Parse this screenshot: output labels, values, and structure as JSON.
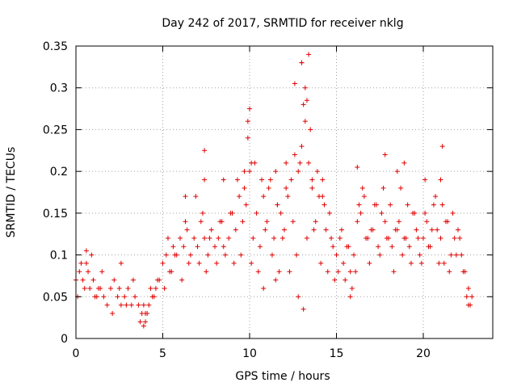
{
  "chart_data": {
    "type": "scatter",
    "title": "Day 242 of 2017, SRMTID for receiver nklg",
    "xlabel": "GPS time / hours",
    "ylabel": "SRMTID / TECUs",
    "xlim": [
      0,
      24
    ],
    "ylim": [
      0,
      0.35
    ],
    "x_ticks": [
      0,
      5,
      10,
      15,
      20
    ],
    "x_tick_labels": [
      "0",
      "5",
      "10",
      "15",
      "20"
    ],
    "y_ticks": [
      0,
      0.05,
      0.1,
      0.15,
      0.2,
      0.25,
      0.3,
      0.35
    ],
    "y_tick_labels": [
      "0",
      "0.05",
      "0.1",
      "0.15",
      "0.2",
      "0.25",
      "0.3",
      "0.35"
    ],
    "grid": true,
    "marker": "+",
    "series_color": "#e00000",
    "series": [
      {
        "name": "SRMTID",
        "x": [
          0.0,
          0.2,
          0.4,
          0.6,
          0.8,
          1.0,
          1.2,
          1.4,
          1.6,
          1.8,
          2.0,
          2.2,
          2.4,
          2.6,
          2.8,
          3.0,
          3.2,
          3.4,
          3.6,
          3.8,
          4.0,
          4.2,
          4.4,
          4.6,
          4.8,
          5.0,
          5.2,
          5.4,
          5.6,
          5.8,
          6.0,
          6.2,
          6.4,
          6.6,
          6.8,
          7.0,
          7.2,
          7.4,
          7.6,
          7.8,
          8.0,
          8.2,
          8.4,
          8.6,
          8.8,
          9.0,
          9.2,
          9.4,
          9.6,
          9.8,
          10.0,
          10.2,
          10.4,
          10.6,
          10.8,
          11.0,
          11.2,
          11.4,
          11.6,
          11.8,
          12.0,
          12.2,
          12.4,
          12.6,
          12.8,
          13.0,
          13.2,
          13.4,
          13.6,
          13.8,
          14.0,
          14.2,
          14.4,
          14.6,
          14.8,
          15.0,
          15.2,
          15.4,
          15.6,
          15.8,
          16.0,
          16.2,
          16.4,
          16.6,
          16.8,
          17.0,
          17.2,
          17.4,
          17.6,
          17.8,
          18.0,
          18.2,
          18.4,
          18.6,
          18.8,
          19.0,
          19.2,
          19.4,
          19.6,
          19.8,
          20.0,
          20.2,
          20.4,
          20.6,
          20.8,
          21.0,
          21.2,
          21.4,
          21.6,
          21.8,
          22.0,
          22.2,
          22.4,
          22.6,
          22.8,
          0.1,
          0.3,
          0.5,
          0.7,
          0.9,
          1.1,
          1.3,
          1.5,
          2.1,
          2.5,
          2.9,
          3.3,
          3.7,
          3.9,
          4.1,
          4.3,
          4.5,
          4.7,
          5.1,
          5.3,
          5.5,
          5.7,
          6.1,
          6.3,
          6.5,
          6.9,
          7.1,
          7.3,
          7.5,
          7.7,
          8.1,
          8.3,
          8.5,
          8.9,
          9.1,
          9.3,
          9.5,
          9.7,
          9.9,
          10.1,
          10.3,
          10.5,
          10.7,
          10.9,
          11.1,
          11.3,
          11.5,
          11.7,
          11.9,
          12.1,
          12.3,
          12.5,
          12.7,
          12.9,
          13.1,
          13.3,
          13.5,
          13.7,
          13.9,
          14.1,
          14.3,
          14.5,
          14.7,
          14.9,
          15.1,
          15.3,
          15.5,
          15.7,
          15.9,
          16.1,
          16.3,
          16.5,
          16.7,
          16.9,
          17.1,
          17.3,
          17.5,
          17.7,
          17.9,
          18.1,
          18.3,
          18.5,
          18.7,
          18.9,
          19.1,
          19.3,
          19.5,
          19.7,
          19.9,
          20.1,
          20.3,
          20.5,
          20.7,
          20.9,
          21.1,
          21.3,
          21.5,
          21.7,
          21.9,
          22.1,
          22.3,
          22.5,
          22.7,
          7.4,
          7.4,
          9.9,
          10.0,
          12.1,
          13.0,
          13.2,
          13.3,
          13.4,
          17.8,
          18.9,
          21.0,
          21.1,
          12.8,
          13.1,
          9.7,
          10.1,
          16.2,
          14.2,
          8.5,
          6.3,
          11.6,
          13.6,
          18.5,
          20.1,
          22.6,
          4.0,
          3.9,
          0.6,
          2.6,
          13.0,
          12.6,
          15.8,
          10.8,
          11.5
        ],
        "y": [
          0.07,
          0.08,
          0.07,
          0.09,
          0.06,
          0.07,
          0.05,
          0.06,
          0.05,
          0.04,
          0.06,
          0.07,
          0.05,
          0.04,
          0.05,
          0.06,
          0.04,
          0.05,
          0.04,
          0.03,
          0.03,
          0.04,
          0.05,
          0.06,
          0.07,
          0.09,
          0.1,
          0.08,
          0.11,
          0.1,
          0.12,
          0.11,
          0.13,
          0.1,
          0.12,
          0.11,
          0.14,
          0.12,
          0.1,
          0.13,
          0.11,
          0.12,
          0.14,
          0.1,
          0.12,
          0.15,
          0.13,
          0.17,
          0.14,
          0.16,
          0.2,
          0.12,
          0.15,
          0.11,
          0.17,
          0.14,
          0.19,
          0.12,
          0.16,
          0.15,
          0.13,
          0.17,
          0.19,
          0.22,
          0.2,
          0.23,
          0.26,
          0.21,
          0.18,
          0.14,
          0.17,
          0.19,
          0.13,
          0.15,
          0.11,
          0.1,
          0.12,
          0.09,
          0.11,
          0.08,
          0.1,
          0.14,
          0.15,
          0.17,
          0.12,
          0.13,
          0.16,
          0.11,
          0.15,
          0.14,
          0.12,
          0.11,
          0.13,
          0.14,
          0.1,
          0.12,
          0.11,
          0.15,
          0.13,
          0.1,
          0.12,
          0.14,
          0.11,
          0.16,
          0.13,
          0.12,
          0.09,
          0.14,
          0.1,
          0.12,
          0.13,
          0.1,
          0.08,
          0.06,
          0.05,
          0.05,
          0.09,
          0.06,
          0.08,
          0.1,
          0.05,
          0.06,
          0.08,
          0.03,
          0.06,
          0.04,
          0.07,
          0.02,
          0.04,
          0.03,
          0.06,
          0.05,
          0.07,
          0.06,
          0.12,
          0.08,
          0.1,
          0.07,
          0.14,
          0.09,
          0.17,
          0.09,
          0.15,
          0.08,
          0.12,
          0.09,
          0.14,
          0.11,
          0.15,
          0.09,
          0.19,
          0.1,
          0.18,
          0.24,
          0.09,
          0.21,
          0.08,
          0.19,
          0.13,
          0.18,
          0.1,
          0.2,
          0.08,
          0.12,
          0.18,
          0.08,
          0.14,
          0.1,
          0.21,
          0.28,
          0.12,
          0.25,
          0.13,
          0.2,
          0.09,
          0.16,
          0.08,
          0.12,
          0.07,
          0.08,
          0.13,
          0.07,
          0.11,
          0.06,
          0.08,
          0.16,
          0.18,
          0.12,
          0.09,
          0.13,
          0.16,
          0.1,
          0.18,
          0.12,
          0.16,
          0.08,
          0.13,
          0.18,
          0.12,
          0.16,
          0.09,
          0.15,
          0.12,
          0.09,
          0.15,
          0.11,
          0.13,
          0.17,
          0.09,
          0.16,
          0.14,
          0.08,
          0.15,
          0.1,
          0.12,
          0.08,
          0.05,
          0.04,
          0.225,
          0.19,
          0.26,
          0.275,
          0.21,
          0.33,
          0.3,
          0.285,
          0.34,
          0.22,
          0.21,
          0.19,
          0.23,
          0.05,
          0.035,
          0.2,
          0.21,
          0.205,
          0.17,
          0.19,
          0.17,
          0.16,
          0.19,
          0.2,
          0.19,
          0.04,
          0.02,
          0.015,
          0.105,
          0.09,
          0.33,
          0.305,
          0.05,
          0.06,
          0.07
        ]
      }
    ]
  }
}
